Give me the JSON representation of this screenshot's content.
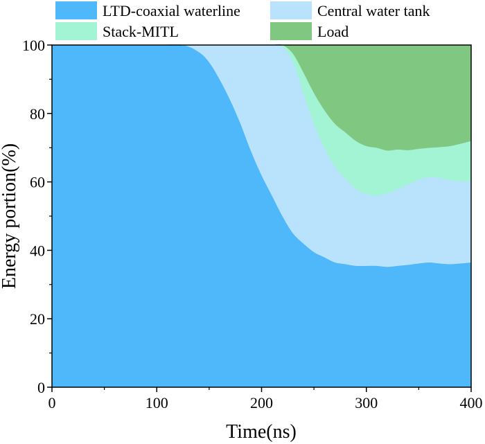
{
  "chart_data": {
    "type": "area",
    "stacked": true,
    "xlabel": "Time(ns)",
    "ylabel": "Energy portion(%)",
    "xlim": [
      0,
      400
    ],
    "ylim": [
      0,
      100
    ],
    "xticks": [
      0,
      100,
      200,
      300,
      400
    ],
    "yticks": [
      0,
      20,
      40,
      60,
      80,
      100
    ],
    "grid": false,
    "legend_position": "top",
    "x": [
      0,
      50,
      100,
      125,
      140,
      150,
      160,
      170,
      180,
      190,
      200,
      210,
      220,
      230,
      240,
      250,
      260,
      270,
      280,
      290,
      300,
      310,
      320,
      330,
      340,
      350,
      360,
      370,
      380,
      390,
      400
    ],
    "series": [
      {
        "name": "LTD-coaxial waterline",
        "color": "#4fb8fa",
        "values": [
          100,
          100,
          100,
          100,
          98,
          95,
          90,
          84,
          77,
          69,
          62,
          56,
          50,
          45,
          42,
          39.5,
          38,
          36.5,
          36,
          35.5,
          35.5,
          35.5,
          35.2,
          35.5,
          35.8,
          36.2,
          36.5,
          36.2,
          36,
          36.2,
          36.5
        ]
      },
      {
        "name": "Central water tank",
        "color": "#b9e2fc",
        "values": [
          0,
          0,
          0,
          0,
          2,
          5,
          10,
          16,
          23,
          31,
          38,
          44,
          49.5,
          50,
          44,
          37.5,
          32,
          28,
          25,
          22.5,
          21,
          20.5,
          21.5,
          22.5,
          23.5,
          24.5,
          25,
          25,
          24.5,
          24,
          23.5
        ]
      },
      {
        "name": "Stack-MITL",
        "color": "#a3f3d5",
        "values": [
          0,
          0,
          0,
          0,
          0,
          0,
          0,
          0,
          0,
          0,
          0,
          0,
          0.5,
          2.5,
          6,
          9,
          11,
          12.5,
          13.5,
          14,
          14,
          14,
          12.5,
          11.5,
          10,
          9,
          8.5,
          9,
          10,
          11,
          12
        ]
      },
      {
        "name": "Load",
        "color": "#80c882",
        "values": [
          0,
          0,
          0,
          0,
          0,
          0,
          0,
          0,
          0,
          0,
          0,
          0,
          0,
          2.5,
          8,
          14,
          19,
          23,
          25.5,
          28,
          29.5,
          30,
          30.8,
          30.5,
          30.7,
          30.3,
          30,
          29.8,
          29.5,
          28.8,
          28
        ]
      }
    ]
  }
}
